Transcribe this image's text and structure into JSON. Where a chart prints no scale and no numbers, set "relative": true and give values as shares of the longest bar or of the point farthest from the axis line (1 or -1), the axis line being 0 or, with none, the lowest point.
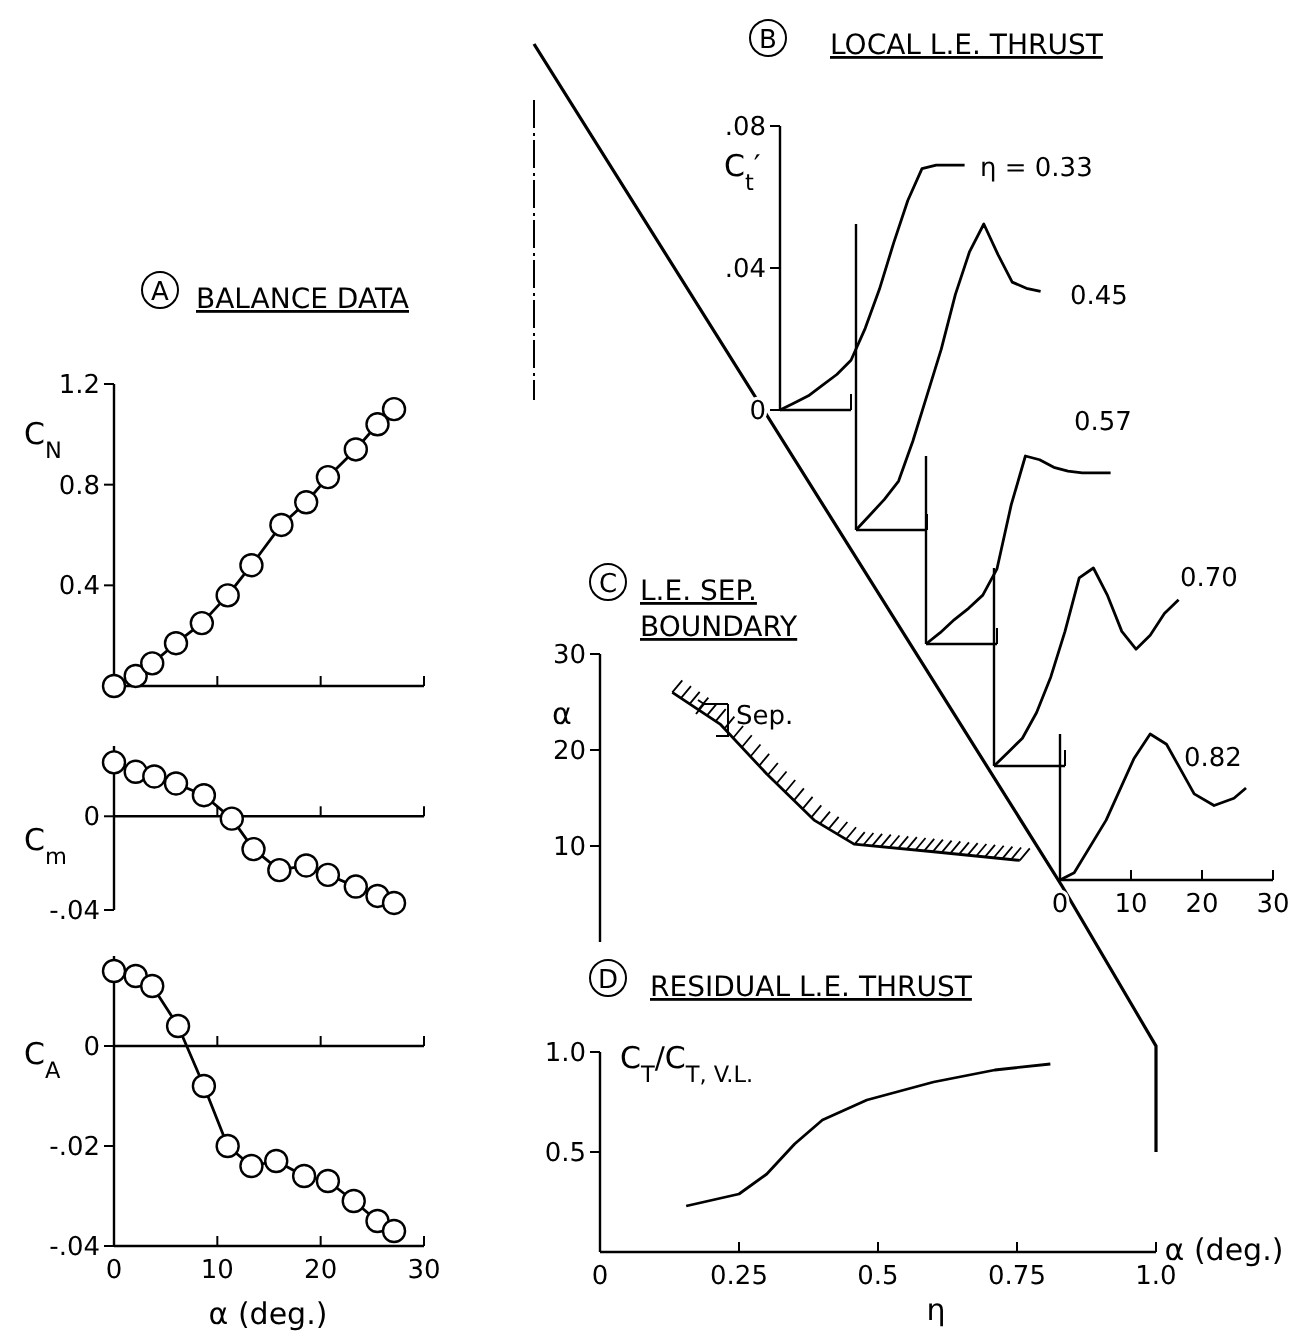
{
  "chart_data": [
    {
      "type": "line",
      "title": "BALANCE DATA",
      "annotations": [
        "A"
      ],
      "ylabel": "C$_{N}$",
      "xlim": [
        0,
        30
      ],
      "ylim": [
        0,
        1.2
      ],
      "xticks": [
        0,
        10,
        20,
        30
      ],
      "yticks": [
        {
          "value": 0.4,
          "label": "0.4"
        },
        {
          "value": 0.8,
          "label": "0.8"
        },
        {
          "value": 1.2,
          "label": "1.2"
        }
      ],
      "tick_labels": "y",
      "marker": "circle",
      "series": [
        {
          "color": "#000000",
          "x": [
            0,
            2.1,
            3.7,
            6.0,
            8.5,
            11.0,
            13.3,
            16.2,
            18.6,
            20.7,
            23.4,
            25.5,
            27.1
          ],
          "values": [
            0,
            0.04,
            0.09,
            0.17,
            0.25,
            0.36,
            0.48,
            0.64,
            0.73,
            0.83,
            0.94,
            1.04,
            1.1
          ]
        }
      ]
    },
    {
      "type": "line",
      "ylabel": "C$_{m}$",
      "xlim": [
        0,
        30
      ],
      "ylim": [
        -0.04,
        0.03
      ],
      "xticks": [
        0,
        10,
        20,
        30
      ],
      "yticks": [
        {
          "value": 0,
          "label": "0"
        },
        {
          "value": -0.04,
          "label": "-.04"
        }
      ],
      "tick_labels": "y",
      "marker": "circle",
      "series": [
        {
          "color": "#000000",
          "x": [
            0,
            2.1,
            3.9,
            6.0,
            8.7,
            11.4,
            13.5,
            16.0,
            18.6,
            20.7,
            23.4,
            25.5,
            27.1
          ],
          "values": [
            0.023,
            0.019,
            0.017,
            0.014,
            0.009,
            -0.001,
            -0.014,
            -0.023,
            -0.021,
            -0.025,
            -0.03,
            -0.034,
            -0.037
          ]
        }
      ]
    },
    {
      "type": "line",
      "ylabel": "C$_{A}$",
      "xlabel": "α (deg.)",
      "xlim": [
        0,
        30
      ],
      "ylim": [
        -0.04,
        0.018
      ],
      "xticks": [
        0,
        10,
        20,
        30
      ],
      "yticks": [
        {
          "value": 0,
          "label": "0"
        },
        {
          "value": -0.02,
          "label": "-.02"
        },
        {
          "value": -0.04,
          "label": "-.04"
        }
      ],
      "marker": "circle",
      "series": [
        {
          "color": "#000000",
          "x": [
            0,
            2.1,
            3.7,
            6.2,
            8.7,
            11.0,
            13.3,
            15.7,
            18.4,
            20.7,
            23.2,
            25.5,
            27.1
          ],
          "values": [
            0.015,
            0.014,
            0.012,
            0.004,
            -0.008,
            -0.02,
            -0.024,
            -0.023,
            -0.026,
            -0.027,
            -0.031,
            -0.035,
            -0.037
          ]
        }
      ]
    },
    {
      "type": "line",
      "title": "LOCAL L.E. THRUST",
      "annotations": [
        "B"
      ],
      "ylabel": "C$_{t}$′",
      "categories": [
        null,
        null,
        null,
        null,
        null,
        null,
        null,
        null,
        null,
        null,
        null,
        null,
        null,
        null
      ],
      "ylim": [
        0,
        0.08
      ],
      "yticks": [
        {
          "value": 0,
          "label": "0"
        },
        {
          "value": 0.04,
          "label": ".04"
        },
        {
          "value": 0.08,
          "label": ".08"
        }
      ],
      "tick_labels": "y",
      "series": [
        {
          "name": "η = 0.33",
          "color": "#000000",
          "values": [
            0,
            0.002,
            0.004,
            0.007,
            0.01,
            0.014,
            0.023,
            0.034,
            0.047,
            0.059,
            0.068,
            0.069,
            0.069,
            0.069
          ]
        }
      ]
    },
    {
      "type": "line",
      "relative": true,
      "categories": [
        null,
        null,
        null,
        null,
        null,
        null,
        null,
        null,
        null,
        null,
        null,
        null,
        null,
        null
      ],
      "series": [
        {
          "name": "0.45",
          "color": "#000000",
          "values": [
            0,
            0.05,
            0.1,
            0.16,
            0.29,
            0.44,
            0.59,
            0.77,
            0.91,
            1.0,
            0.9,
            0.81,
            0.79,
            0.78
          ]
        }
      ]
    },
    {
      "type": "line",
      "relative": true,
      "categories": [
        null,
        null,
        null,
        null,
        null,
        null,
        null,
        null,
        null,
        null,
        null,
        null,
        null,
        null
      ],
      "series": [
        {
          "name": "0.57",
          "color": "#000000",
          "values": [
            0,
            0.06,
            0.13,
            0.19,
            0.26,
            0.4,
            0.74,
            1.0,
            0.98,
            0.94,
            0.92,
            0.91,
            0.91,
            0.91
          ]
        }
      ]
    },
    {
      "type": "line",
      "relative": true,
      "categories": [
        null,
        null,
        null,
        null,
        null,
        null,
        null,
        null,
        null,
        null,
        null,
        null,
        null,
        null
      ],
      "series": [
        {
          "name": "0.70",
          "color": "#000000",
          "values": [
            0,
            0.07,
            0.14,
            0.27,
            0.45,
            0.68,
            0.95,
            1.0,
            0.86,
            0.68,
            0.59,
            0.66,
            0.77,
            0.84
          ]
        }
      ]
    },
    {
      "type": "line",
      "relative": true,
      "xlabel": "α (deg.)",
      "xlim": [
        0,
        30
      ],
      "xticks": [
        0,
        10,
        20,
        30
      ],
      "series": [
        {
          "name": "0.82",
          "color": "#000000",
          "x": [
            0,
            2,
            6.5,
            10.4,
            12.7,
            15,
            18.9,
            21.7,
            24.5,
            26.2
          ],
          "values": [
            0,
            0.05,
            0.41,
            0.83,
            1.0,
            0.93,
            0.59,
            0.51,
            0.56,
            0.63
          ]
        }
      ]
    },
    {
      "type": "line",
      "title": "L.E. SEP.\nBOUNDARY",
      "annotations": [
        "C",
        "Sep."
      ],
      "ylabel": "α",
      "xlim": [
        0,
        1
      ],
      "ylim": [
        0,
        30
      ],
      "yticks": [
        10,
        20,
        30
      ],
      "tick_labels": "y",
      "series": [
        {
          "color": "#000000",
          "x": [
            0.13,
            0.216,
            0.3,
            0.385,
            0.457,
            0.6,
            0.755
          ],
          "values": [
            26.0,
            22.7,
            17.5,
            12.7,
            10.2,
            9.4,
            8.5
          ]
        }
      ]
    },
    {
      "type": "line",
      "title": "RESIDUAL L.E. THRUST",
      "annotations": [
        "D"
      ],
      "ylabel": "C$_{T}$/C$_{T, V.L.}$",
      "xlabel": "η",
      "xlim": [
        0,
        1
      ],
      "ylim": [
        0,
        1
      ],
      "xticks": [
        0,
        {
          "value": 0.25,
          "label": "0.25"
        },
        {
          "value": 0.5,
          "label": "0.5"
        },
        {
          "value": 0.75,
          "label": "0.75"
        },
        {
          "value": 1,
          "label": "1.0"
        }
      ],
      "yticks": [
        {
          "value": 0.5,
          "label": "0.5"
        },
        {
          "value": 1,
          "label": "1.0"
        }
      ],
      "series": [
        {
          "color": "#000000",
          "x": [
            0.155,
            0.25,
            0.3,
            0.35,
            0.4,
            0.48,
            0.6,
            0.71,
            0.81
          ],
          "values": [
            0.23,
            0.29,
            0.39,
            0.54,
            0.66,
            0.76,
            0.85,
            0.91,
            0.94
          ]
        }
      ]
    }
  ]
}
